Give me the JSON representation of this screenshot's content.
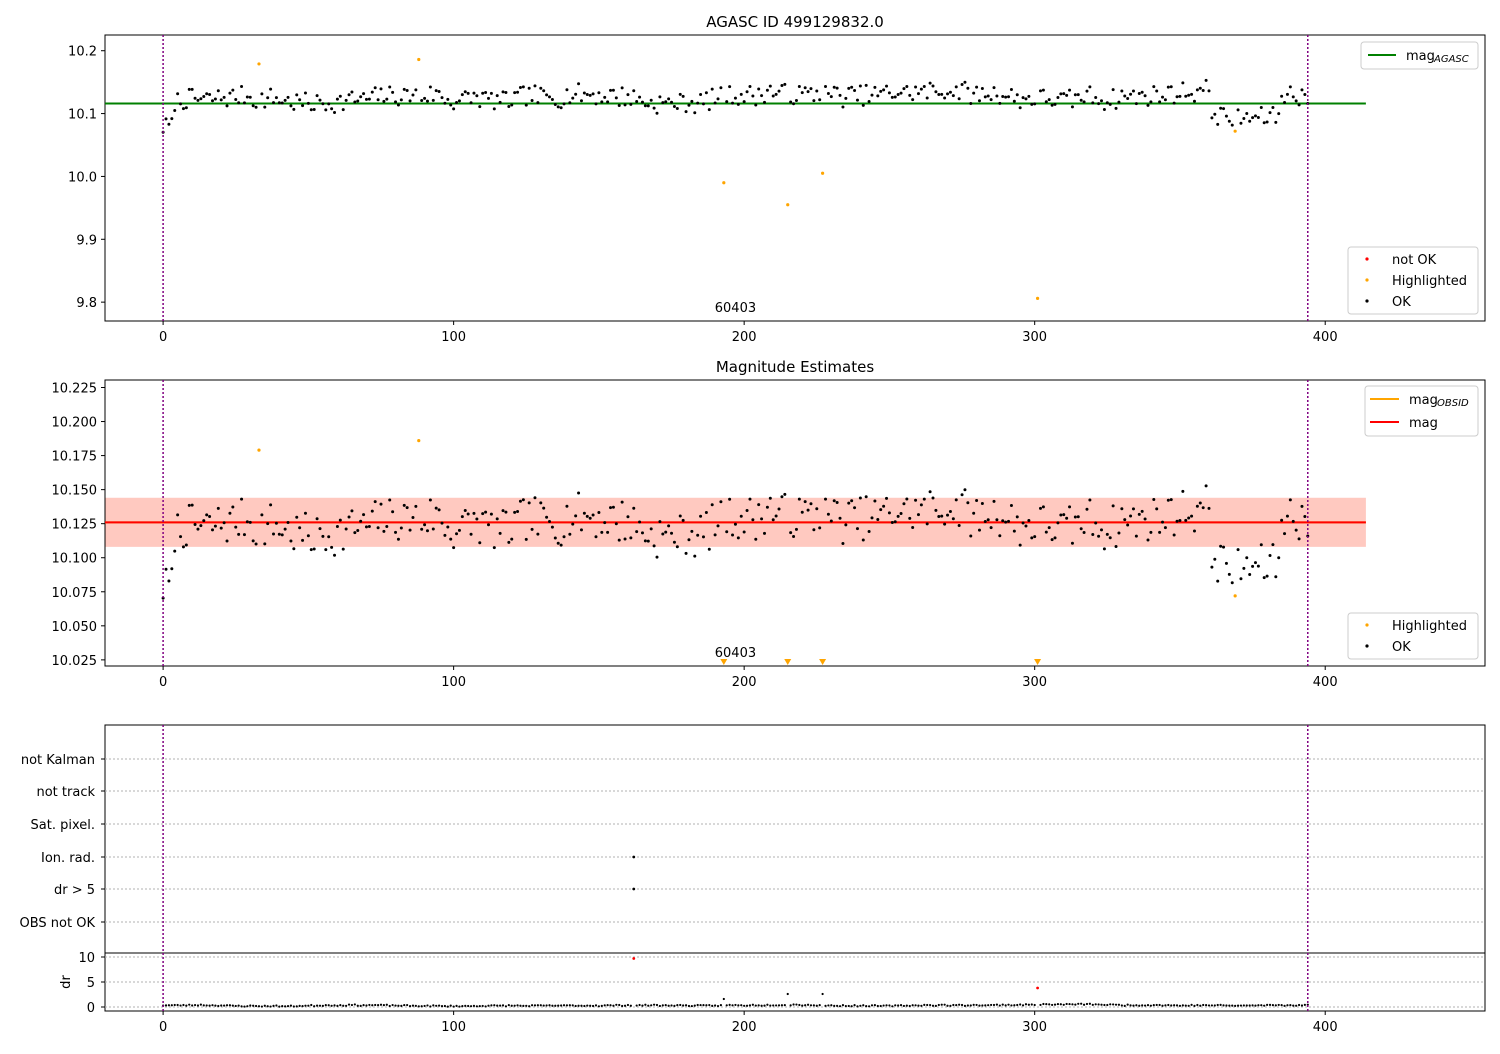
{
  "chart_data": [
    {
      "type": "scatter",
      "title": "AGASC ID 499129832.0",
      "xlim": [
        -20,
        455
      ],
      "ylim": [
        9.77,
        10.225
      ],
      "xticks": [
        0,
        100,
        200,
        300,
        400
      ],
      "yticks": [
        9.8,
        9.9,
        10.0,
        10.1,
        10.2
      ],
      "ytick_labels": [
        "9.8",
        "9.9",
        "10.0",
        "10.1",
        "10.2"
      ],
      "obs_label": "60403",
      "obs_label_x": 197,
      "vlines": [
        0,
        394
      ],
      "mag_agasc": 10.116,
      "mag_agasc_span": [
        -20,
        414
      ],
      "legend_line": {
        "label": "mag",
        "sub": "AGASC"
      },
      "legend_points": [
        "not OK",
        "Highlighted",
        "OK"
      ],
      "highlighted": [
        [
          33,
          10.179
        ],
        [
          88,
          10.186
        ],
        [
          193,
          9.99
        ],
        [
          215,
          9.955
        ],
        [
          227,
          10.005
        ],
        [
          301,
          9.806
        ],
        [
          369,
          10.072
        ]
      ],
      "ok_seed": 7,
      "ok_count": 395,
      "ok_center": 10.126,
      "colors": {
        "agasc_line": "#008000",
        "ok": "#000000",
        "highlighted": "#ffa500",
        "not_ok": "#ff0000",
        "vline": "#800080"
      }
    },
    {
      "type": "scatter",
      "title": "Magnitude Estimates",
      "xlim": [
        -20,
        455
      ],
      "ylim": [
        10.0205,
        10.2305
      ],
      "xticks": [
        0,
        100,
        200,
        300,
        400
      ],
      "yticks": [
        10.025,
        10.05,
        10.075,
        10.1,
        10.125,
        10.15,
        10.175,
        10.2,
        10.225
      ],
      "ytick_labels": [
        "10.025",
        "10.050",
        "10.075",
        "10.100",
        "10.125",
        "10.150",
        "10.175",
        "10.200",
        "10.225"
      ],
      "obs_label": "60403",
      "obs_label_x": 197,
      "vlines": [
        0,
        394
      ],
      "mag": 10.126,
      "mag_band": [
        10.108,
        10.144
      ],
      "mag_obsid": 10.126,
      "mag_obsid_band": [
        10.108,
        10.144
      ],
      "line_span": [
        -20,
        414
      ],
      "legend_lines": [
        {
          "label": "mag",
          "sub": "OBSID"
        },
        {
          "label": "mag",
          "sub": ""
        }
      ],
      "legend_points": [
        "Highlighted",
        "OK"
      ],
      "highlighted": [
        [
          33,
          10.179
        ],
        [
          88,
          10.186
        ],
        [
          369,
          10.072
        ]
      ],
      "offscale_markers": [
        193,
        215,
        227,
        301
      ],
      "colors": {
        "mag": "#ff0000",
        "mag_obsid": "#ffa500",
        "band": "#ffc0cb",
        "obsid_band": "#ffa07a"
      }
    },
    {
      "type": "scatter",
      "title": "",
      "xlim": [
        -20,
        455
      ],
      "xticks": [
        0,
        100,
        200,
        300,
        400
      ],
      "vlines": [
        0,
        394
      ],
      "flag_labels": [
        "not Kalman",
        "not track",
        "Sat. pixel.",
        "Ion. rad.",
        "dr > 5",
        "OBS not OK"
      ],
      "flag_points": [
        {
          "flag": "Ion. rad.",
          "x": 162
        },
        {
          "flag": "dr > 5",
          "x": 162
        }
      ]
    },
    {
      "type": "scatter",
      "title": "",
      "ylabel": "dr",
      "xlim": [
        -20,
        455
      ],
      "ylim": [
        -0.8,
        10.8
      ],
      "xticks": [
        0,
        100,
        200,
        300,
        400
      ],
      "yticks": [
        0,
        5,
        10
      ],
      "vlines": [
        0,
        394
      ],
      "red_points": [
        [
          162,
          9.7
        ],
        [
          301,
          3.8
        ]
      ],
      "spikes": [
        [
          193,
          1.6
        ],
        [
          215,
          2.6
        ],
        [
          227,
          2.6
        ]
      ]
    }
  ]
}
